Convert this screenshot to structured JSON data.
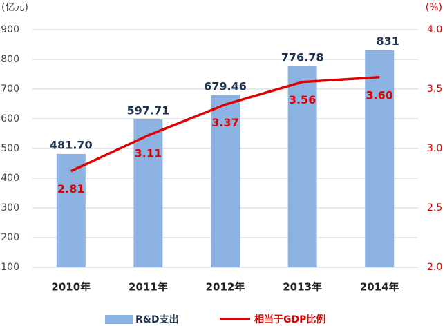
{
  "chart_data": {
    "type": "bar",
    "y_label": "(亿元)",
    "y2_label": "(%)",
    "categories": [
      "2010年",
      "2011年",
      "2012年",
      "2013年",
      "2014年"
    ],
    "series": [
      {
        "name": "R&D支出",
        "type": "bar",
        "color": "#8db3e2",
        "values": [
          481.7,
          597.71,
          679.46,
          776.78,
          831
        ],
        "value_labels": [
          "481.70",
          "597.71",
          "679.46",
          "776.78",
          "831"
        ]
      },
      {
        "name": "相当于GDP比例",
        "type": "line",
        "axis": "y2",
        "color": "#e00000",
        "values": [
          2.81,
          3.11,
          3.37,
          3.56,
          3.6
        ],
        "value_labels": [
          "2.81",
          "3.11",
          "3.37",
          "3.56",
          "3.60"
        ]
      }
    ],
    "ylim": [
      100,
      900
    ],
    "yticks": [
      100,
      200,
      300,
      400,
      500,
      600,
      700,
      800,
      900
    ],
    "y2lim": [
      2,
      4
    ],
    "y2ticks": [
      {
        "value": 2,
        "label": "2.0"
      },
      2.5,
      {
        "value": 3,
        "label": "3.0"
      },
      3.5,
      {
        "value": 4,
        "label": "4.0"
      }
    ],
    "grid": true
  }
}
